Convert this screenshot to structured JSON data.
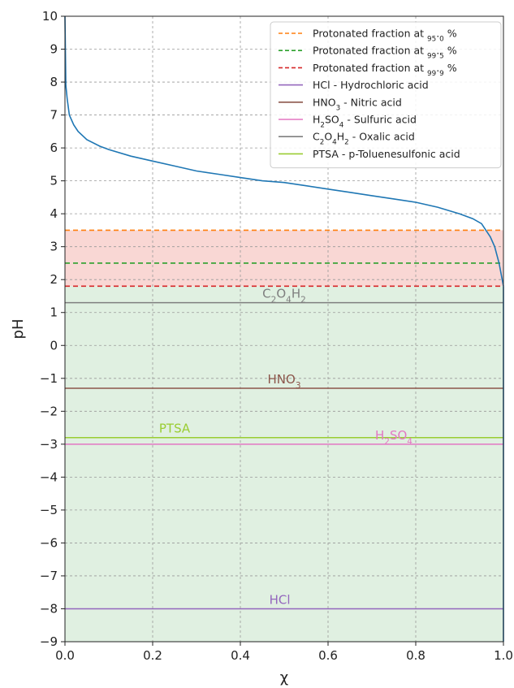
{
  "chart_data": {
    "type": "line",
    "xlabel": "χ",
    "ylabel": "pH",
    "xlim": [
      0.0,
      1.0
    ],
    "ylim": [
      -9,
      10
    ],
    "x_ticks": [
      "0.0",
      "0.2",
      "0.4",
      "0.6",
      "0.8",
      "1.0"
    ],
    "x_tick_values": [
      0.0,
      0.2,
      0.4,
      0.6,
      0.8,
      1.0
    ],
    "y_ticks": [
      "−9",
      "−8",
      "−7",
      "−6",
      "−5",
      "−4",
      "−3",
      "−2",
      "−1",
      "0",
      "1",
      "2",
      "3",
      "4",
      "5",
      "6",
      "7",
      "8",
      "9",
      "10"
    ],
    "y_tick_values": [
      -9,
      -8,
      -7,
      -6,
      -5,
      -4,
      -3,
      -2,
      -1,
      0,
      1,
      2,
      3,
      4,
      5,
      6,
      7,
      8,
      9,
      10
    ],
    "grid": true,
    "legend_position": "top-right",
    "curve": {
      "color": "#1f77b4",
      "x": [
        0.0,
        0.002,
        0.005,
        0.01,
        0.02,
        0.03,
        0.05,
        0.08,
        0.1,
        0.15,
        0.2,
        0.25,
        0.3,
        0.35,
        0.4,
        0.45,
        0.5,
        0.55,
        0.6,
        0.65,
        0.7,
        0.75,
        0.8,
        0.85,
        0.9,
        0.93,
        0.95,
        0.97,
        0.98,
        0.99,
        1.0
      ],
      "y": [
        10.0,
        7.9,
        7.5,
        7.0,
        6.7,
        6.5,
        6.25,
        6.05,
        5.95,
        5.75,
        5.6,
        5.45,
        5.3,
        5.2,
        5.1,
        5.0,
        4.95,
        4.85,
        4.75,
        4.65,
        4.55,
        4.45,
        4.35,
        4.2,
        4.0,
        3.85,
        3.7,
        3.3,
        3.0,
        2.5,
        1.8
      ]
    },
    "threshold_lines": [
      {
        "label": "Protonated fraction at 95.0 %",
        "y": 3.5,
        "color": "#ff7f0e"
      },
      {
        "label": "Protonated fraction at 99.5 %",
        "y": 2.5,
        "color": "#2ca02c"
      },
      {
        "label": "Protonated fraction at 99.9 %",
        "y": 1.8,
        "color": "#d62728"
      }
    ],
    "regions": [
      {
        "y_from": 1.8,
        "y_to": 3.5,
        "color": "#f4b6b0"
      },
      {
        "y_from": -9,
        "y_to": 1.8,
        "color": "#c7e3c9"
      }
    ],
    "acid_lines": [
      {
        "label_main": "HCl - Hydrochloric acid",
        "annot": "HCl",
        "y": -8.0,
        "color": "#9467bd",
        "annot_x": 0.49
      },
      {
        "label_main": "HNO3 - Nitric acid",
        "annot": "HNO3",
        "y": -1.3,
        "color": "#8c564b",
        "annot_x": 0.5
      },
      {
        "label_main": "H2SO4 - Sulfuric acid",
        "annot": "H2SO4",
        "y": -3.0,
        "color": "#e377c2",
        "annot_x": 0.75
      },
      {
        "label_main": "C2O4H2 - Oxalic acid",
        "annot": "C2O4H2",
        "y": 1.3,
        "color": "#7f7f7f",
        "annot_x": 0.5
      },
      {
        "label_main": "PTSA - p-Toluenesulfonic acid",
        "annot": "PTSA",
        "y": -2.8,
        "color": "#9acd32",
        "annot_x": 0.25
      }
    ]
  }
}
